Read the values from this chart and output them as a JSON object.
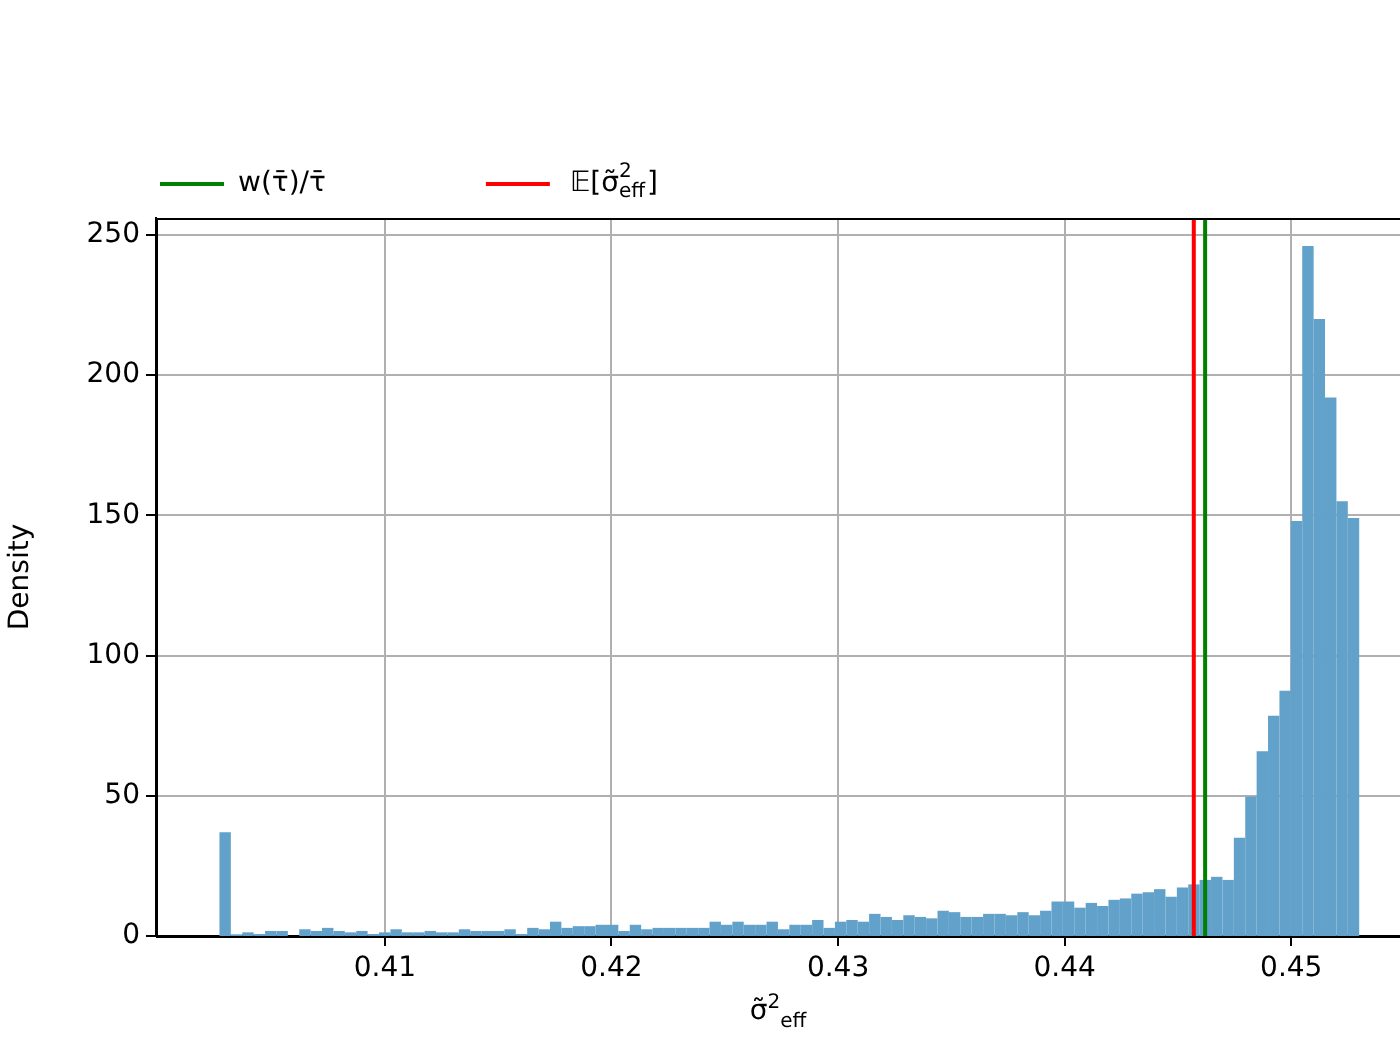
{
  "chart_data": {
    "type": "histogram",
    "xlabel": "σ̃$^{2}$$_{eff}$",
    "ylabel": "Density",
    "bins": [
      0.4027,
      0.403203,
      0.403706,
      0.404209,
      0.404712,
      0.405215,
      0.405718,
      0.406221,
      0.406724,
      0.407227,
      0.40773,
      0.408233,
      0.408736,
      0.409239,
      0.409742,
      0.410245,
      0.410748,
      0.411251,
      0.411754,
      0.412257,
      0.41276,
      0.413263,
      0.413766,
      0.414269,
      0.414772,
      0.415275,
      0.415778,
      0.416281,
      0.416784,
      0.417287,
      0.41779,
      0.418293,
      0.418796,
      0.419299,
      0.419802,
      0.420305,
      0.420808,
      0.421311,
      0.421814,
      0.422317,
      0.42282,
      0.423323,
      0.423826,
      0.424329,
      0.424832,
      0.425335,
      0.425838,
      0.426341,
      0.426844,
      0.427347,
      0.42785,
      0.428353,
      0.428856,
      0.429359,
      0.429862,
      0.430365,
      0.430868,
      0.431371,
      0.431874,
      0.432377,
      0.43288,
      0.433383,
      0.433886,
      0.434389,
      0.434892,
      0.435395,
      0.435898,
      0.436401,
      0.436904,
      0.437407,
      0.43791,
      0.438413,
      0.438916,
      0.439419,
      0.439922,
      0.440425,
      0.440928,
      0.441431,
      0.441934,
      0.442437,
      0.44294,
      0.443443,
      0.443946,
      0.444449,
      0.444952,
      0.445455,
      0.445958,
      0.446461,
      0.446964,
      0.447467,
      0.44797,
      0.448473,
      0.448976,
      0.449479,
      0.449982,
      0.450485,
      0.450988,
      0.451491,
      0.451994,
      0.452497,
      0.453
    ],
    "values": [
      37,
      0.6,
      1.3,
      0.7,
      1.8,
      1.8,
      0,
      2.4,
      1.8,
      2.9,
      1.8,
      1.3,
      1.8,
      0.7,
      1.3,
      2.4,
      1.3,
      1.3,
      1.8,
      1.3,
      1.3,
      2.4,
      1.8,
      1.8,
      1.8,
      2.4,
      0.7,
      2.9,
      2.4,
      5.1,
      2.9,
      3.5,
      3.5,
      4,
      4,
      1.8,
      4,
      2.4,
      2.9,
      2.9,
      2.9,
      2.9,
      2.9,
      5.1,
      4,
      5.1,
      4,
      4,
      5.1,
      2.4,
      4,
      4,
      5.7,
      2.9,
      5.1,
      5.7,
      5.1,
      7.9,
      6.8,
      5.7,
      7.4,
      6.8,
      6.3,
      9,
      8.5,
      6.8,
      6.8,
      7.9,
      7.9,
      7.4,
      8.5,
      7.4,
      9,
      12.3,
      12.3,
      10.1,
      11.8,
      10.7,
      12.9,
      13.4,
      15.1,
      15.6,
      16.7,
      14,
      17.3,
      18.4,
      20,
      21.1,
      20,
      35,
      49.7,
      65.9,
      78.5,
      87.4,
      148,
      246,
      220,
      192,
      155,
      149
    ],
    "color": "#62a1ca",
    "xlim": [
      0.3999,
      0.4548
    ],
    "xticks": [
      0.41,
      0.42,
      0.43,
      0.44,
      0.45
    ],
    "ylim": [
      0,
      256
    ],
    "yticks": [
      0,
      50,
      100,
      150,
      200,
      250
    ],
    "grid": true,
    "legend": "top left",
    "ref_lines": [
      {
        "axis": "x",
        "value": 0.4462,
        "label": "w(τ̄)/τ̄",
        "color": "#008000"
      },
      {
        "axis": "x",
        "value": 0.4457,
        "label": "𝔼[σ̃$^{2}$$_{eff}$]",
        "color": "#ff0000"
      }
    ]
  }
}
